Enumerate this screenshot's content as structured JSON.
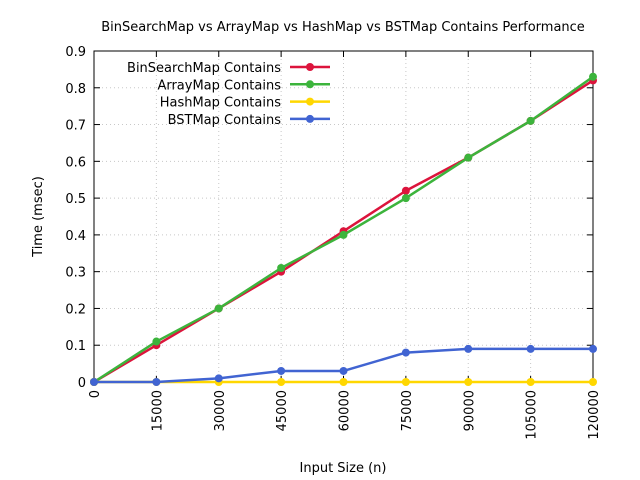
{
  "chart_data": {
    "type": "line",
    "title": "BinSearchMap vs ArrayMap vs HashMap vs BSTMap Contains Performance",
    "xlabel": "Input Size (n)",
    "ylabel": "Time (msec)",
    "x": [
      0,
      15000,
      30000,
      45000,
      60000,
      75000,
      90000,
      105000,
      120000
    ],
    "x_tick_labels": [
      "0",
      "15000",
      "30000",
      "45000",
      "60000",
      "75000",
      "90000",
      "105000",
      "120000"
    ],
    "y_tick_labels": [
      "0",
      "0.1",
      "0.2",
      "0.3",
      "0.4",
      "0.5",
      "0.6",
      "0.7",
      "0.8",
      "0.9"
    ],
    "xlim": [
      0,
      120000
    ],
    "ylim": [
      0,
      0.9
    ],
    "grid": true,
    "legend_position": "top-left",
    "series": [
      {
        "name": "BinSearchMap Contains",
        "color": "#dc143c",
        "values": [
          0,
          0.1,
          0.2,
          0.3,
          0.41,
          0.52,
          0.61,
          0.71,
          0.82
        ]
      },
      {
        "name": "ArrayMap Contains",
        "color": "#3cb43c",
        "values": [
          0,
          0.11,
          0.2,
          0.31,
          0.4,
          0.5,
          0.61,
          0.71,
          0.83
        ]
      },
      {
        "name": "HashMap Contains",
        "color": "#ffd700",
        "values": [
          0,
          0,
          0,
          0,
          0,
          0,
          0,
          0,
          0
        ]
      },
      {
        "name": "BSTMap Contains",
        "color": "#4164d2",
        "values": [
          0,
          0,
          0.01,
          0.03,
          0.03,
          0.08,
          0.09,
          0.09,
          0.09
        ]
      }
    ]
  }
}
